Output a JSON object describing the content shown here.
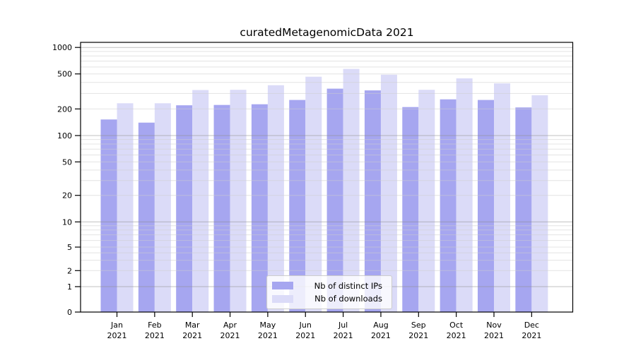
{
  "figure": {
    "title": "curatedMetagenomicData 2021"
  },
  "chart_data": {
    "type": "bar",
    "title": "curatedMetagenomicData 2021",
    "year": "2021",
    "months": [
      "Jan",
      "Feb",
      "Mar",
      "Apr",
      "May",
      "Jun",
      "Jul",
      "Aug",
      "Sep",
      "Oct",
      "Nov",
      "Dec"
    ],
    "categories": [
      "Jan 2021",
      "Feb 2021",
      "Mar 2021",
      "Apr 2021",
      "May 2021",
      "Jun 2021",
      "Jul 2021",
      "Aug 2021",
      "Sep 2021",
      "Oct 2021",
      "Nov 2021",
      "Dec 2021"
    ],
    "series": [
      {
        "name": "Nb of distinct IPs",
        "color": "#a6a6f0",
        "values": [
          152,
          140,
          220,
          222,
          226,
          253,
          340,
          325,
          210,
          257,
          253,
          208
        ]
      },
      {
        "name": "Nb of downloads",
        "color": "#dbdbf8",
        "values": [
          232,
          232,
          328,
          330,
          372,
          465,
          570,
          490,
          330,
          445,
          390,
          286
        ]
      }
    ],
    "yscale": "symlog",
    "ylim": [
      0,
      1050
    ],
    "yticks": [
      0,
      1,
      2,
      5,
      10,
      20,
      50,
      100,
      200,
      500,
      1000
    ],
    "ytick_labels": [
      "0",
      "1",
      "2",
      "5",
      "10",
      "20",
      "50",
      "100",
      "200",
      "500",
      "1000"
    ],
    "xlabel": "",
    "ylabel": "",
    "grid": "on",
    "legend_position": "lower center",
    "colors": {
      "bar_dark": "#a6a6f0",
      "bar_light": "#dbdbf8",
      "grid_major": "#c3c3c3",
      "grid_minor": "#e7e7e7",
      "axis": "#000000",
      "legend_border": "#cccccc"
    }
  }
}
